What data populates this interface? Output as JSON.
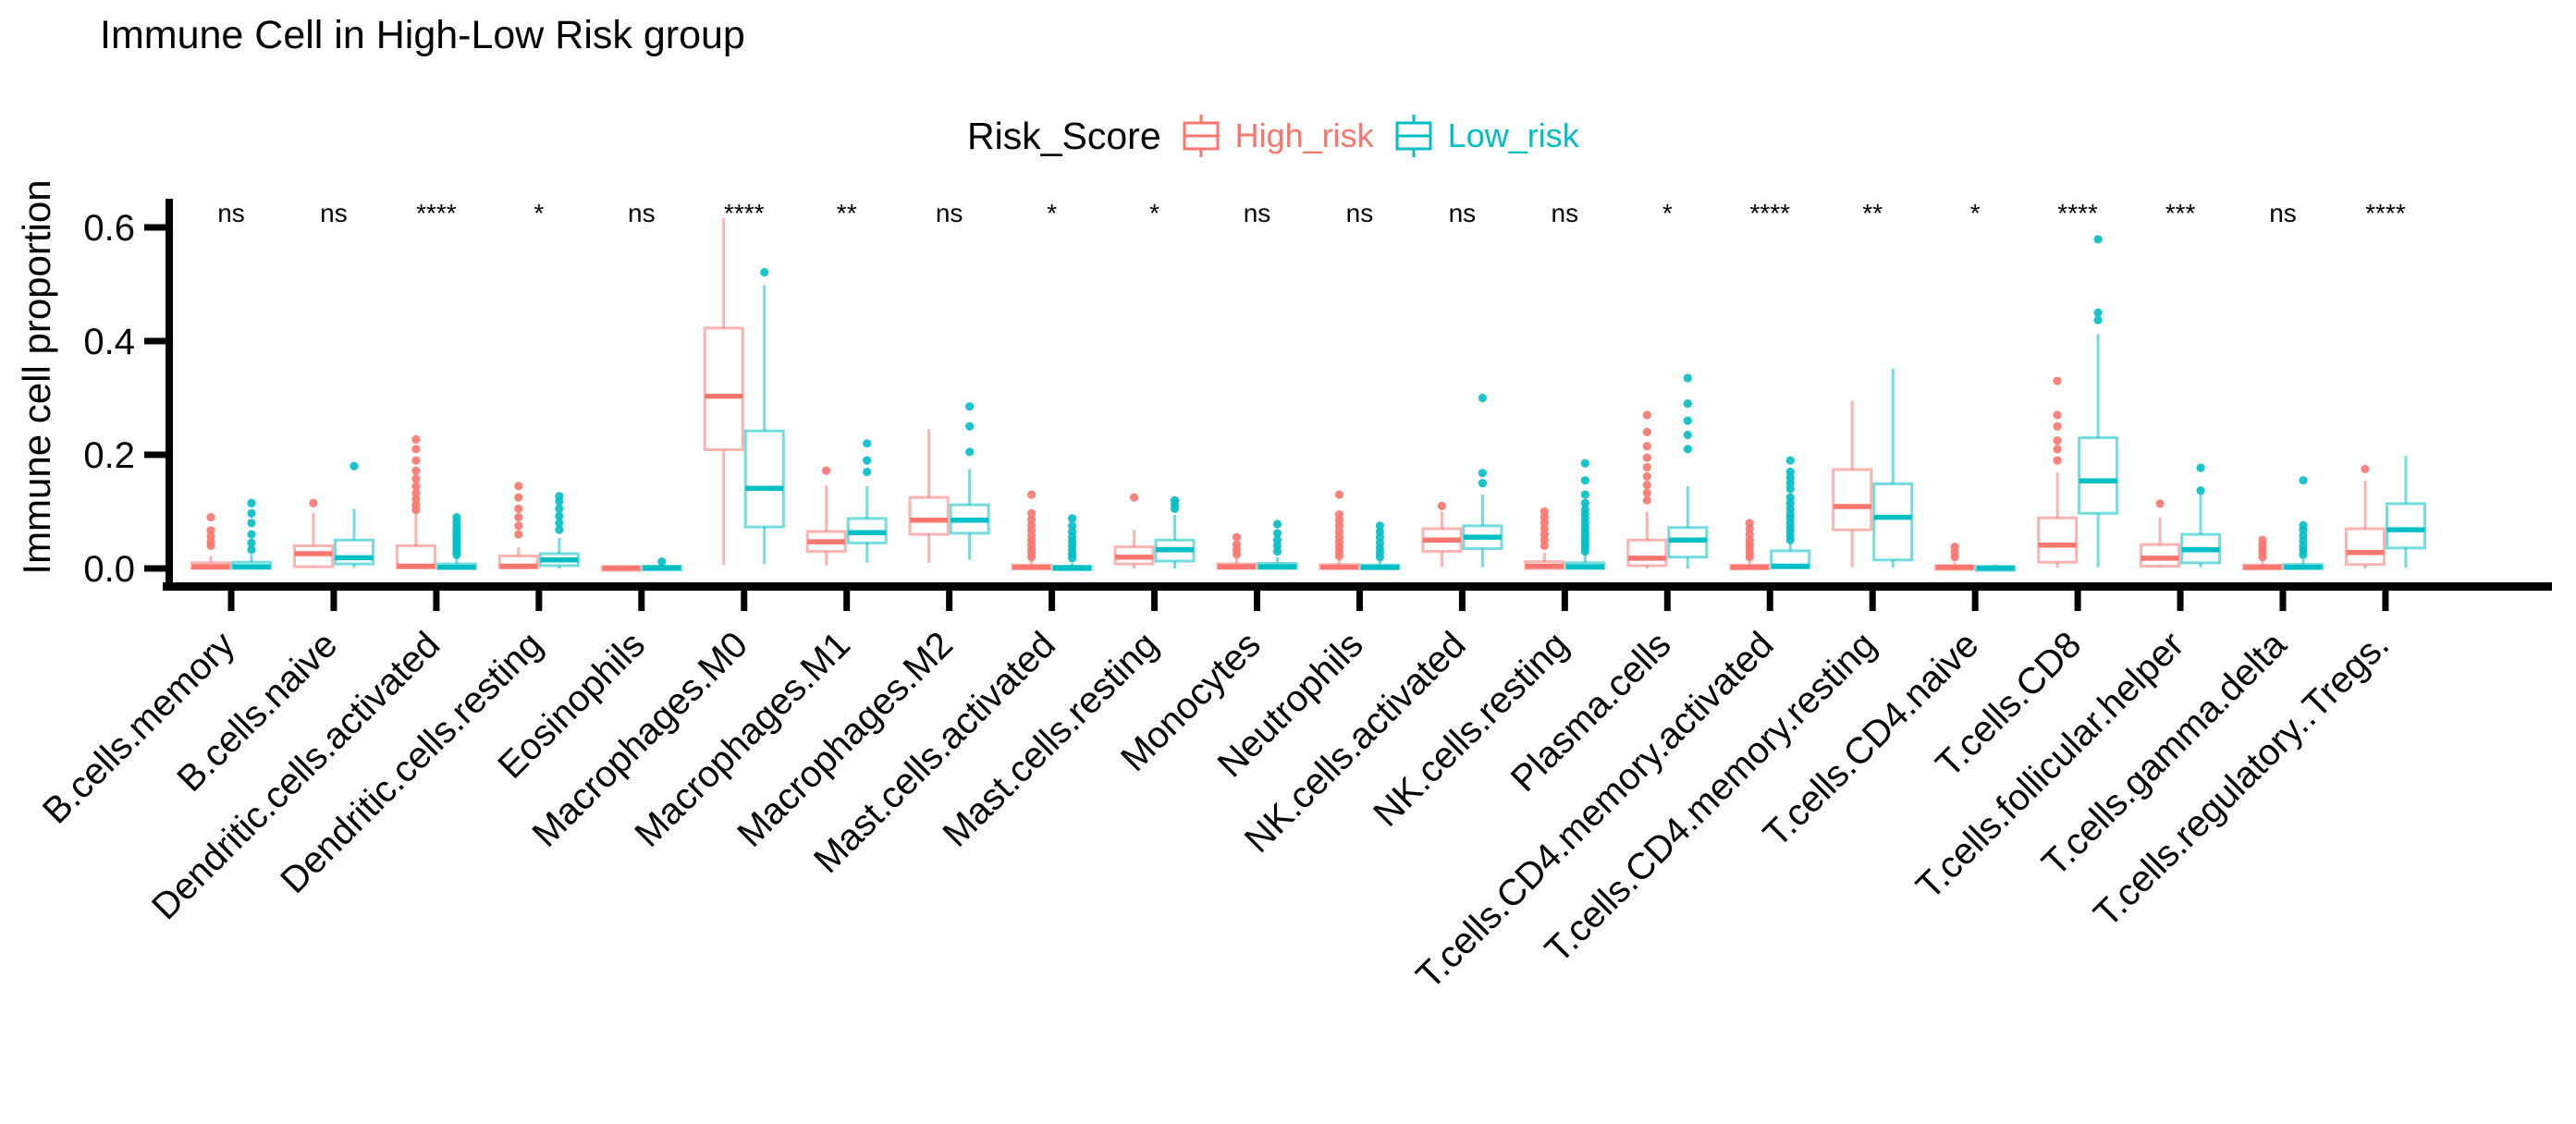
{
  "chart_data": {
    "type": "boxplot",
    "title": "Immune Cell in High-Low Risk group",
    "ylabel": "Immune cell proportion",
    "xlabel": "",
    "ylim": [
      0,
      0.64
    ],
    "yticks": [
      "0.0",
      "0.2",
      "0.4",
      "0.6"
    ],
    "ytick_values": [
      0,
      0.2,
      0.4,
      0.6
    ],
    "grid": false,
    "legend": {
      "title": "Risk_Score",
      "position": "top",
      "series": [
        {
          "name": "High_risk",
          "color": "#F8766D"
        },
        {
          "name": "Low_risk",
          "color": "#00BFC4"
        }
      ]
    },
    "groups": [
      {
        "label": "B.cells.memory",
        "sig": "ns",
        "high": {
          "lo": 0,
          "q1": 0,
          "med": 0.003,
          "q3": 0.01,
          "hi": 0.022,
          "out": [
            0.04,
            0.048,
            0.057,
            0.067,
            0.09
          ]
        },
        "low": {
          "lo": 0,
          "q1": 0,
          "med": 0.003,
          "q3": 0.011,
          "hi": 0.025,
          "out": [
            0.033,
            0.045,
            0.06,
            0.08,
            0.097,
            0.115
          ]
        }
      },
      {
        "label": "B.cells.naive",
        "sig": "ns",
        "high": {
          "lo": 0.001,
          "q1": 0.003,
          "med": 0.026,
          "q3": 0.04,
          "hi": 0.098,
          "out": [
            0.115
          ]
        },
        "low": {
          "lo": 0.001,
          "q1": 0.008,
          "med": 0.019,
          "q3": 0.05,
          "hi": 0.105,
          "out": [
            0.18
          ]
        }
      },
      {
        "label": "Dendritic.cells.activated",
        "sig": "****",
        "high": {
          "lo": 0,
          "q1": 0.001,
          "med": 0.004,
          "q3": 0.04,
          "hi": 0.1,
          "out": [
            0.103,
            0.112,
            0.122,
            0.133,
            0.145,
            0.158,
            0.172,
            0.19,
            0.21,
            0.227
          ]
        },
        "low": {
          "lo": 0,
          "q1": 0,
          "med": 0.002,
          "q3": 0.008,
          "hi": 0.02,
          "out": [
            0.024,
            0.03,
            0.036,
            0.042,
            0.048,
            0.054,
            0.06,
            0.067,
            0.074,
            0.082,
            0.09
          ]
        }
      },
      {
        "label": "Dendritic.cells.resting",
        "sig": "*",
        "high": {
          "lo": 0,
          "q1": 0.001,
          "med": 0.004,
          "q3": 0.022,
          "hi": 0.037,
          "out": [
            0.06,
            0.075,
            0.09,
            0.105,
            0.125,
            0.145
          ]
        },
        "low": {
          "lo": 0,
          "q1": 0.005,
          "med": 0.015,
          "q3": 0.026,
          "hi": 0.054,
          "out": [
            0.068,
            0.08,
            0.092,
            0.105,
            0.118,
            0.127
          ]
        }
      },
      {
        "label": "Eosinophils",
        "sig": "ns",
        "high": {
          "lo": 0,
          "q1": 0,
          "med": 0.001,
          "q3": 0.003,
          "hi": 0.006,
          "out": []
        },
        "low": {
          "lo": 0,
          "q1": 0,
          "med": 0.001,
          "q3": 0.004,
          "hi": 0.008,
          "out": [
            0.012
          ]
        }
      },
      {
        "label": "Macrophages.M0",
        "sig": "****",
        "high": {
          "lo": 0.006,
          "q1": 0.209,
          "med": 0.303,
          "q3": 0.423,
          "hi": 0.616,
          "out": []
        },
        "low": {
          "lo": 0.008,
          "q1": 0.073,
          "med": 0.141,
          "q3": 0.242,
          "hi": 0.498,
          "out": [
            0.521
          ]
        }
      },
      {
        "label": "Macrophages.M1",
        "sig": "**",
        "high": {
          "lo": 0.005,
          "q1": 0.03,
          "med": 0.047,
          "q3": 0.065,
          "hi": 0.146,
          "out": [
            0.172
          ]
        },
        "low": {
          "lo": 0.01,
          "q1": 0.045,
          "med": 0.063,
          "q3": 0.088,
          "hi": 0.145,
          "out": [
            0.17,
            0.19,
            0.22
          ]
        }
      },
      {
        "label": "Macrophages.M2",
        "sig": "ns",
        "high": {
          "lo": 0.01,
          "q1": 0.06,
          "med": 0.085,
          "q3": 0.125,
          "hi": 0.245,
          "out": []
        },
        "low": {
          "lo": 0.015,
          "q1": 0.062,
          "med": 0.085,
          "q3": 0.112,
          "hi": 0.175,
          "out": [
            0.205,
            0.25,
            0.285
          ]
        }
      },
      {
        "label": "Mast.cells.activated",
        "sig": "*",
        "high": {
          "lo": 0,
          "q1": 0,
          "med": 0.002,
          "q3": 0.006,
          "hi": 0.015,
          "out": [
            0.02,
            0.027,
            0.034,
            0.042,
            0.05,
            0.058,
            0.067,
            0.076,
            0.086,
            0.097,
            0.13
          ]
        },
        "low": {
          "lo": 0,
          "q1": 0,
          "med": 0.001,
          "q3": 0.004,
          "hi": 0.01,
          "out": [
            0.018,
            0.025,
            0.032,
            0.04,
            0.048,
            0.056,
            0.065,
            0.075,
            0.088
          ]
        }
      },
      {
        "label": "Mast.cells.resting",
        "sig": "*",
        "high": {
          "lo": 0,
          "q1": 0.008,
          "med": 0.02,
          "q3": 0.038,
          "hi": 0.068,
          "out": [
            0.125
          ]
        },
        "low": {
          "lo": 0,
          "q1": 0.013,
          "med": 0.033,
          "q3": 0.05,
          "hi": 0.095,
          "out": [
            0.105,
            0.113,
            0.12
          ]
        }
      },
      {
        "label": "Monocytes",
        "sig": "ns",
        "high": {
          "lo": 0,
          "q1": 0,
          "med": 0.003,
          "q3": 0.008,
          "hi": 0.018,
          "out": [
            0.025,
            0.033,
            0.042,
            0.055
          ]
        },
        "low": {
          "lo": 0,
          "q1": 0,
          "med": 0.003,
          "q3": 0.009,
          "hi": 0.02,
          "out": [
            0.03,
            0.04,
            0.05,
            0.062,
            0.078
          ]
        }
      },
      {
        "label": "Neutrophils",
        "sig": "ns",
        "high": {
          "lo": 0,
          "q1": 0,
          "med": 0.002,
          "q3": 0.007,
          "hi": 0.016,
          "out": [
            0.022,
            0.03,
            0.038,
            0.046,
            0.055,
            0.065,
            0.075,
            0.085,
            0.095,
            0.13
          ]
        },
        "low": {
          "lo": 0,
          "q1": 0,
          "med": 0.002,
          "q3": 0.006,
          "hi": 0.014,
          "out": [
            0.02,
            0.028,
            0.036,
            0.045,
            0.055,
            0.065,
            0.075
          ]
        }
      },
      {
        "label": "NK.cells.activated",
        "sig": "ns",
        "high": {
          "lo": 0.002,
          "q1": 0.03,
          "med": 0.05,
          "q3": 0.07,
          "hi": 0.1,
          "out": [
            0.11
          ]
        },
        "low": {
          "lo": 0.002,
          "q1": 0.035,
          "med": 0.055,
          "q3": 0.075,
          "hi": 0.13,
          "out": [
            0.15,
            0.168,
            0.3
          ]
        }
      },
      {
        "label": "NK.cells.resting",
        "sig": "ns",
        "high": {
          "lo": 0,
          "q1": 0,
          "med": 0.004,
          "q3": 0.012,
          "hi": 0.028,
          "out": [
            0.04,
            0.05,
            0.06,
            0.07,
            0.08,
            0.09,
            0.1
          ]
        },
        "low": {
          "lo": 0,
          "q1": 0,
          "med": 0.003,
          "q3": 0.01,
          "hi": 0.024,
          "out": [
            0.03,
            0.037,
            0.044,
            0.051,
            0.058,
            0.065,
            0.072,
            0.08,
            0.088,
            0.096,
            0.104,
            0.115,
            0.13,
            0.155,
            0.185
          ]
        }
      },
      {
        "label": "Plasma.cells",
        "sig": "*",
        "high": {
          "lo": 0,
          "q1": 0.005,
          "med": 0.018,
          "q3": 0.05,
          "hi": 0.1,
          "out": [
            0.12,
            0.133,
            0.147,
            0.162,
            0.178,
            0.195,
            0.215,
            0.24,
            0.27
          ]
        },
        "low": {
          "lo": 0,
          "q1": 0.02,
          "med": 0.05,
          "q3": 0.072,
          "hi": 0.145,
          "out": [
            0.21,
            0.235,
            0.26,
            0.29,
            0.335
          ]
        }
      },
      {
        "label": "T.cells.CD4.memory.activated",
        "sig": "****",
        "high": {
          "lo": 0,
          "q1": 0,
          "med": 0.002,
          "q3": 0.006,
          "hi": 0.014,
          "out": [
            0.02,
            0.027,
            0.035,
            0.042,
            0.05,
            0.06,
            0.07,
            0.08
          ]
        },
        "low": {
          "lo": 0,
          "q1": 0.001,
          "med": 0.004,
          "q3": 0.031,
          "hi": 0.045,
          "out": [
            0.05,
            0.057,
            0.065,
            0.072,
            0.08,
            0.088,
            0.096,
            0.105,
            0.115,
            0.125,
            0.14,
            0.15,
            0.16,
            0.17,
            0.19
          ]
        }
      },
      {
        "label": "T.cells.CD4.memory.resting",
        "sig": "**",
        "high": {
          "lo": 0.002,
          "q1": 0.068,
          "med": 0.109,
          "q3": 0.174,
          "hi": 0.295,
          "out": []
        },
        "low": {
          "lo": 0.001,
          "q1": 0.015,
          "med": 0.09,
          "q3": 0.149,
          "hi": 0.352,
          "out": []
        }
      },
      {
        "label": "T.cells.CD4.naive",
        "sig": "*",
        "high": {
          "lo": 0,
          "q1": 0,
          "med": 0.002,
          "q3": 0.005,
          "hi": 0.011,
          "out": [
            0.02,
            0.028,
            0.038
          ]
        },
        "low": {
          "lo": 0,
          "q1": 0,
          "med": 0.001,
          "q3": 0.003,
          "hi": 0.007,
          "out": []
        }
      },
      {
        "label": "T.cells.CD8",
        "sig": "****",
        "high": {
          "lo": 0.001,
          "q1": 0.011,
          "med": 0.041,
          "q3": 0.089,
          "hi": 0.169,
          "out": [
            0.19,
            0.21,
            0.225,
            0.25,
            0.27,
            0.33
          ]
        },
        "low": {
          "lo": 0.002,
          "q1": 0.097,
          "med": 0.154,
          "q3": 0.23,
          "hi": 0.412,
          "out": [
            0.437,
            0.45,
            0.579
          ]
        }
      },
      {
        "label": "T.cells.follicular.helper",
        "sig": "***",
        "high": {
          "lo": 0.001,
          "q1": 0.004,
          "med": 0.018,
          "q3": 0.042,
          "hi": 0.09,
          "out": [
            0.114
          ]
        },
        "low": {
          "lo": 0.002,
          "q1": 0.01,
          "med": 0.033,
          "q3": 0.06,
          "hi": 0.13,
          "out": [
            0.137,
            0.177
          ]
        }
      },
      {
        "label": "T.cells.gamma.delta",
        "sig": "ns",
        "high": {
          "lo": 0,
          "q1": 0,
          "med": 0.002,
          "q3": 0.006,
          "hi": 0.014,
          "out": [
            0.02,
            0.027,
            0.034,
            0.042,
            0.05
          ]
        },
        "low": {
          "lo": 0,
          "q1": 0,
          "med": 0.002,
          "q3": 0.007,
          "hi": 0.016,
          "out": [
            0.024,
            0.032,
            0.04,
            0.049,
            0.058,
            0.068,
            0.076,
            0.155
          ]
        }
      },
      {
        "label": "T.cells.regulatory..Tregs.",
        "sig": "****",
        "high": {
          "lo": 0,
          "q1": 0.007,
          "med": 0.028,
          "q3": 0.07,
          "hi": 0.155,
          "out": [
            0.175
          ]
        },
        "low": {
          "lo": 0.001,
          "q1": 0.036,
          "med": 0.068,
          "q3": 0.114,
          "hi": 0.198,
          "out": []
        }
      }
    ]
  }
}
